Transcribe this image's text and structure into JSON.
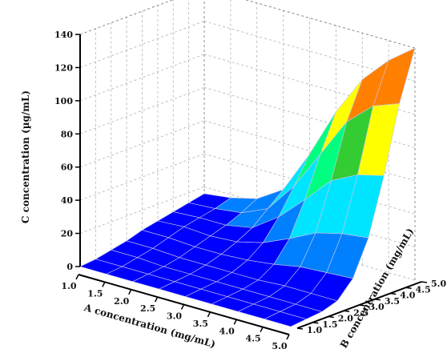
{
  "chart_data": {
    "type": "surface3d",
    "title": "",
    "xlabel": "A concentration (mg/mL)",
    "ylabel": "B concentration (mg/mL)",
    "zlabel": "C concentration (µg/mL)",
    "x": [
      1.0,
      1.5,
      2.0,
      2.5,
      3.0,
      3.5,
      4.0,
      4.5,
      5.0
    ],
    "y": [
      1.0,
      1.5,
      2.0,
      2.5,
      3.0,
      3.5,
      4.0,
      4.5,
      5.0
    ],
    "x_ticks": [
      "1.0",
      "1.5",
      "2.0",
      "2.5",
      "3.0",
      "3.5",
      "4.0",
      "4.5",
      "5.0"
    ],
    "y_ticks": [
      "1.0",
      "1.5",
      "2.0",
      "2.5",
      "3.0",
      "3.5",
      "4.0",
      "4.5",
      "5.0"
    ],
    "z_ticks": [
      "0",
      "20",
      "40",
      "60",
      "80",
      "100",
      "120",
      "140"
    ],
    "zlim": [
      0,
      140
    ],
    "xlim": [
      1.0,
      5.0
    ],
    "ylim": [
      1.0,
      5.0
    ],
    "grid": true,
    "colormap": [
      "#0000ff",
      "#0080ff",
      "#00e5ff",
      "#00ff80",
      "#33cc33",
      "#ffff00",
      "#ff8000",
      "#ff0000"
    ],
    "z_grid": [
      [
        0,
        1,
        3,
        5,
        8,
        10,
        12,
        14,
        16
      ],
      [
        0,
        1,
        3,
        5,
        8,
        11,
        13,
        15,
        18
      ],
      [
        0,
        1,
        2,
        4,
        7,
        10,
        13,
        17,
        22
      ],
      [
        0,
        1,
        2,
        4,
        7,
        11,
        16,
        24,
        32
      ],
      [
        0,
        1,
        2,
        4,
        8,
        15,
        27,
        42,
        58
      ],
      [
        0,
        1,
        2,
        4,
        10,
        22,
        42,
        66,
        88
      ],
      [
        0,
        1,
        2,
        5,
        13,
        30,
        58,
        90,
        112
      ],
      [
        0,
        1,
        2,
        5,
        14,
        34,
        66,
        104,
        128
      ],
      [
        0,
        1,
        2,
        5,
        15,
        36,
        70,
        110,
        140
      ]
    ]
  }
}
